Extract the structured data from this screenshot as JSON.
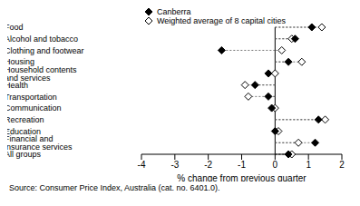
{
  "chart_data": {
    "type": "dot",
    "orientation": "horizontal",
    "source": "Source: Consumer Price Index, Australia (cat. no. 6401.0).",
    "x_label": "% change from previous quarter",
    "categories": [
      "Food",
      "Alcohol and tobacco",
      "Clothing and footwear",
      "Housing",
      "Household contents and services",
      "Health",
      "Transportation",
      "Communication",
      "Recreation",
      "Education",
      "Financial and insurance services",
      "All groups"
    ],
    "series": [
      {
        "name": "Canberra",
        "color": "#000000",
        "marker": "diamond",
        "line_style": "dashed",
        "values": [
          1.1,
          0.6,
          -1.6,
          0.4,
          -0.2,
          -0.6,
          -0.2,
          -0.1,
          1.3,
          0.0,
          1.2,
          0.4
        ]
      },
      {
        "name": "Weighted average of 8 capital cities",
        "color": "#000000",
        "marker": "open_diamond",
        "line_style": "dashed",
        "values": [
          1.4,
          0.5,
          0.2,
          0.8,
          0.0,
          -0.9,
          -0.8,
          0.0,
          1.5,
          0.1,
          0.7,
          0.5
        ]
      }
    ],
    "xlim": [
      -4,
      2
    ],
    "xticks": [
      -4,
      -3,
      -2,
      -1,
      0,
      1,
      2
    ],
    "grid": false,
    "legend": "top"
  }
}
